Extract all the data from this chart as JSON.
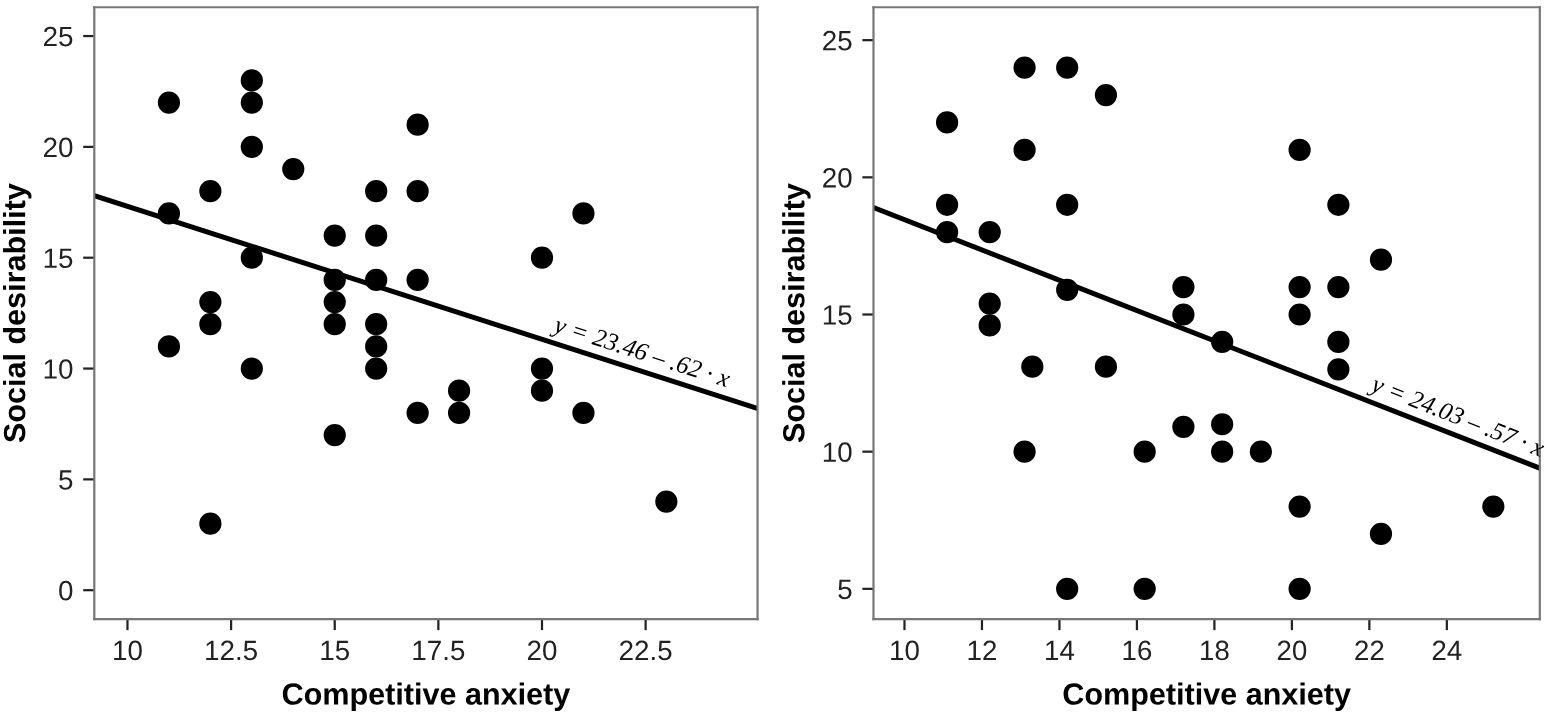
{
  "chart_data": [
    {
      "type": "scatter",
      "xlabel": "Competitive anxiety",
      "ylabel": "Social desirability",
      "xlim": [
        9.2,
        25.2
      ],
      "ylim": [
        -1.3,
        26.3
      ],
      "xticks": [
        10,
        12.5,
        15,
        17.5,
        20,
        22.5
      ],
      "yticks": [
        0,
        5,
        10,
        15,
        20,
        25
      ],
      "grid": false,
      "legend": false,
      "annotations": [
        "y = 23.46 – .62 · x"
      ],
      "series": [
        {
          "type": "scatter",
          "color": "#000000",
          "marker": "circle",
          "x": [
            11,
            11,
            11,
            12,
            12,
            12,
            12,
            13,
            13,
            13,
            13,
            13,
            14,
            15,
            15,
            15,
            15,
            15,
            16,
            16,
            16,
            16,
            16,
            16,
            17,
            17,
            17,
            17,
            18,
            18,
            20,
            20,
            20,
            21,
            21,
            23
          ],
          "values": [
            22,
            17,
            11,
            18,
            13,
            12,
            3,
            23,
            22,
            20,
            15,
            10,
            19,
            16,
            14,
            13,
            12,
            7,
            18,
            16,
            14,
            12,
            11,
            10,
            21,
            18,
            14,
            8,
            9,
            8,
            15,
            10,
            9,
            17,
            8,
            4
          ]
        },
        {
          "type": "line",
          "color": "#000000",
          "marker": "none",
          "line_style": "solid",
          "x": [
            9.2,
            25.2
          ],
          "values": [
            17.8,
            8.2
          ]
        }
      ]
    },
    {
      "type": "scatter",
      "xlabel": "Competitive anxiety",
      "ylabel": "Social desirability",
      "xlim": [
        9.2,
        26.4
      ],
      "ylim": [
        3.9,
        26.2
      ],
      "xticks": [
        10,
        12,
        14,
        16,
        18,
        20,
        22,
        24
      ],
      "yticks": [
        5,
        10,
        15,
        20,
        25
      ],
      "grid": false,
      "legend": false,
      "annotations": [
        "y = 24.03 – .57 · x"
      ],
      "series": [
        {
          "type": "scatter",
          "color": "#000000",
          "marker": "circle",
          "x": [
            11.1,
            11.1,
            11.1,
            12.2,
            12.2,
            12.2,
            13.1,
            13.1,
            13.1,
            13.3,
            14.2,
            14.2,
            14.2,
            14.2,
            15.2,
            15.2,
            16.2,
            16.2,
            17.2,
            17.2,
            17.2,
            18.2,
            18.2,
            18.2,
            19.2,
            20.2,
            20.2,
            20.2,
            20.2,
            20.2,
            21.2,
            21.2,
            21.2,
            21.2,
            22.3,
            22.3,
            25.2
          ],
          "values": [
            22,
            19,
            18,
            18,
            15.4,
            14.6,
            24,
            21,
            10,
            13.1,
            24,
            19,
            15.9,
            5,
            23,
            13.1,
            10,
            5,
            16,
            15,
            10.9,
            14,
            11,
            10,
            10,
            21,
            16,
            15,
            8,
            5,
            19,
            16,
            14,
            13,
            17,
            7,
            8
          ]
        },
        {
          "type": "line",
          "color": "#000000",
          "marker": "none",
          "line_style": "solid",
          "x": [
            9.2,
            26.4
          ],
          "values": [
            18.9,
            9.4
          ]
        }
      ]
    }
  ]
}
